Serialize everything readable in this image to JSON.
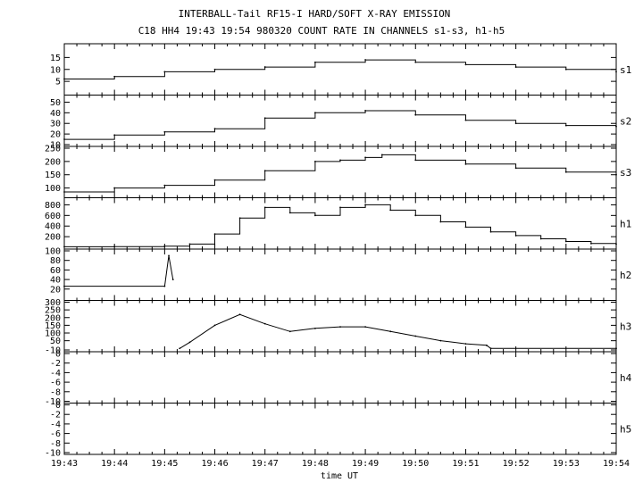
{
  "title_line1": "INTERBALL-Tail RF15-I HARD/SOFT X-RAY EMISSION",
  "title_line2": "C18 HH4 19:43 19:54 980320  COUNT RATE IN CHANNELS s1-s3, h1-h5",
  "colors": {
    "background": "#ffffff",
    "ink": "#000000"
  },
  "chart_data": {
    "type": "line",
    "title": "INTERBALL-Tail RF15-I HARD/SOFT X-RAY EMISSION",
    "subtitle": "C18 HH4 19:43 19:54 980320  COUNT RATE IN CHANNELS s1-s3, h1-h5",
    "xlabel": "time UT",
    "x_ticks": [
      "19:43",
      "19:44",
      "19:45",
      "19:46",
      "19:47",
      "19:48",
      "19:49",
      "19:50",
      "19:51",
      "19:52",
      "19:53",
      "19:54"
    ],
    "x_range": [
      "19:43",
      "19:54"
    ],
    "grid": false,
    "panels": [
      {
        "channel": "s1",
        "ylim": [
          0,
          20
        ],
        "yticks": [
          "5",
          "10",
          "15"
        ],
        "style": "step",
        "points": [
          [
            "19:43",
            6
          ],
          [
            "19:44",
            7
          ],
          [
            "19:45",
            9
          ],
          [
            "19:46",
            10
          ],
          [
            "19:47",
            11
          ],
          [
            "19:48",
            13
          ],
          [
            "19:49",
            14
          ],
          [
            "19:50",
            13
          ],
          [
            "19:51",
            12
          ],
          [
            "19:52",
            11
          ],
          [
            "19:53",
            10
          ],
          [
            "19:54",
            9
          ]
        ]
      },
      {
        "channel": "s2",
        "ylim": [
          10,
          55
        ],
        "yticks": [
          "10",
          "20",
          "30",
          "40",
          "50"
        ],
        "style": "step",
        "points": [
          [
            "19:43",
            15
          ],
          [
            "19:44",
            19
          ],
          [
            "19:45",
            22
          ],
          [
            "19:46",
            25
          ],
          [
            "19:47",
            35
          ],
          [
            "19:48",
            40
          ],
          [
            "19:49",
            42
          ],
          [
            "19:50",
            38
          ],
          [
            "19:51",
            33
          ],
          [
            "19:52",
            30
          ],
          [
            "19:53",
            28
          ],
          [
            "19:54",
            27
          ]
        ]
      },
      {
        "channel": "s3",
        "ylim": [
          70,
          250
        ],
        "yticks": [
          "100",
          "150",
          "200",
          "250"
        ],
        "style": "step",
        "points": [
          [
            "19:43",
            85
          ],
          [
            "19:44",
            100
          ],
          [
            "19:45",
            110
          ],
          [
            "19:46",
            130
          ],
          [
            "19:47",
            165
          ],
          [
            "19:48",
            200
          ],
          [
            "19:48:30",
            205
          ],
          [
            "19:49",
            215
          ],
          [
            "19:49:20",
            225
          ],
          [
            "19:50",
            205
          ],
          [
            "19:51",
            190
          ],
          [
            "19:52",
            175
          ],
          [
            "19:53",
            160
          ],
          [
            "19:54",
            150
          ]
        ]
      },
      {
        "channel": "h1",
        "ylim": [
          0,
          900
        ],
        "yticks": [
          "200",
          "400",
          "600",
          "800"
        ],
        "style": "step",
        "points": [
          [
            "19:43",
            10
          ],
          [
            "19:44",
            12
          ],
          [
            "19:45",
            20
          ],
          [
            "19:45:30",
            60
          ],
          [
            "19:46",
            250
          ],
          [
            "19:46:30",
            550
          ],
          [
            "19:47",
            750
          ],
          [
            "19:47:30",
            650
          ],
          [
            "19:48",
            600
          ],
          [
            "19:48:30",
            750
          ],
          [
            "19:49",
            800
          ],
          [
            "19:49:30",
            700
          ],
          [
            "19:50",
            600
          ],
          [
            "19:50:30",
            480
          ],
          [
            "19:51",
            380
          ],
          [
            "19:51:30",
            290
          ],
          [
            "19:52",
            220
          ],
          [
            "19:52:30",
            160
          ],
          [
            "19:53",
            110
          ],
          [
            "19:53:30",
            70
          ],
          [
            "19:54",
            60
          ]
        ]
      },
      {
        "channel": "h2",
        "ylim": [
          0,
          100
        ],
        "yticks": [
          "20",
          "40",
          "60",
          "80",
          "100"
        ],
        "style": "line",
        "points": [
          [
            "19:43",
            26
          ],
          [
            "19:45",
            26
          ],
          [
            "19:45:05",
            90
          ],
          [
            "19:45:10",
            40
          ]
        ]
      },
      {
        "channel": "h3",
        "ylim": [
          -10,
          300
        ],
        "yticks": [
          "-10",
          "50",
          "100",
          "150",
          "200",
          "250",
          "300"
        ],
        "style": "line",
        "points": [
          [
            "19:45:18",
            0
          ],
          [
            "19:45:30",
            40
          ],
          [
            "19:46",
            150
          ],
          [
            "19:46:30",
            220
          ],
          [
            "19:47",
            160
          ],
          [
            "19:47:30",
            110
          ],
          [
            "19:48",
            130
          ],
          [
            "19:48:30",
            140
          ],
          [
            "19:49",
            140
          ],
          [
            "19:49:30",
            110
          ],
          [
            "19:50",
            80
          ],
          [
            "19:50:30",
            50
          ],
          [
            "19:51",
            30
          ],
          [
            "19:51:25",
            20
          ],
          [
            "19:51:30",
            0
          ],
          [
            "19:54",
            0
          ]
        ]
      },
      {
        "channel": "h4",
        "ylim": [
          -10,
          0
        ],
        "yticks": [
          "-10",
          "-8",
          "-6",
          "-4",
          "-2",
          "0"
        ],
        "style": "line",
        "points": []
      },
      {
        "channel": "h5",
        "ylim": [
          -10,
          0
        ],
        "yticks": [
          "-10",
          "-8",
          "-6",
          "-4",
          "-2",
          "0"
        ],
        "style": "line",
        "points": []
      }
    ]
  }
}
